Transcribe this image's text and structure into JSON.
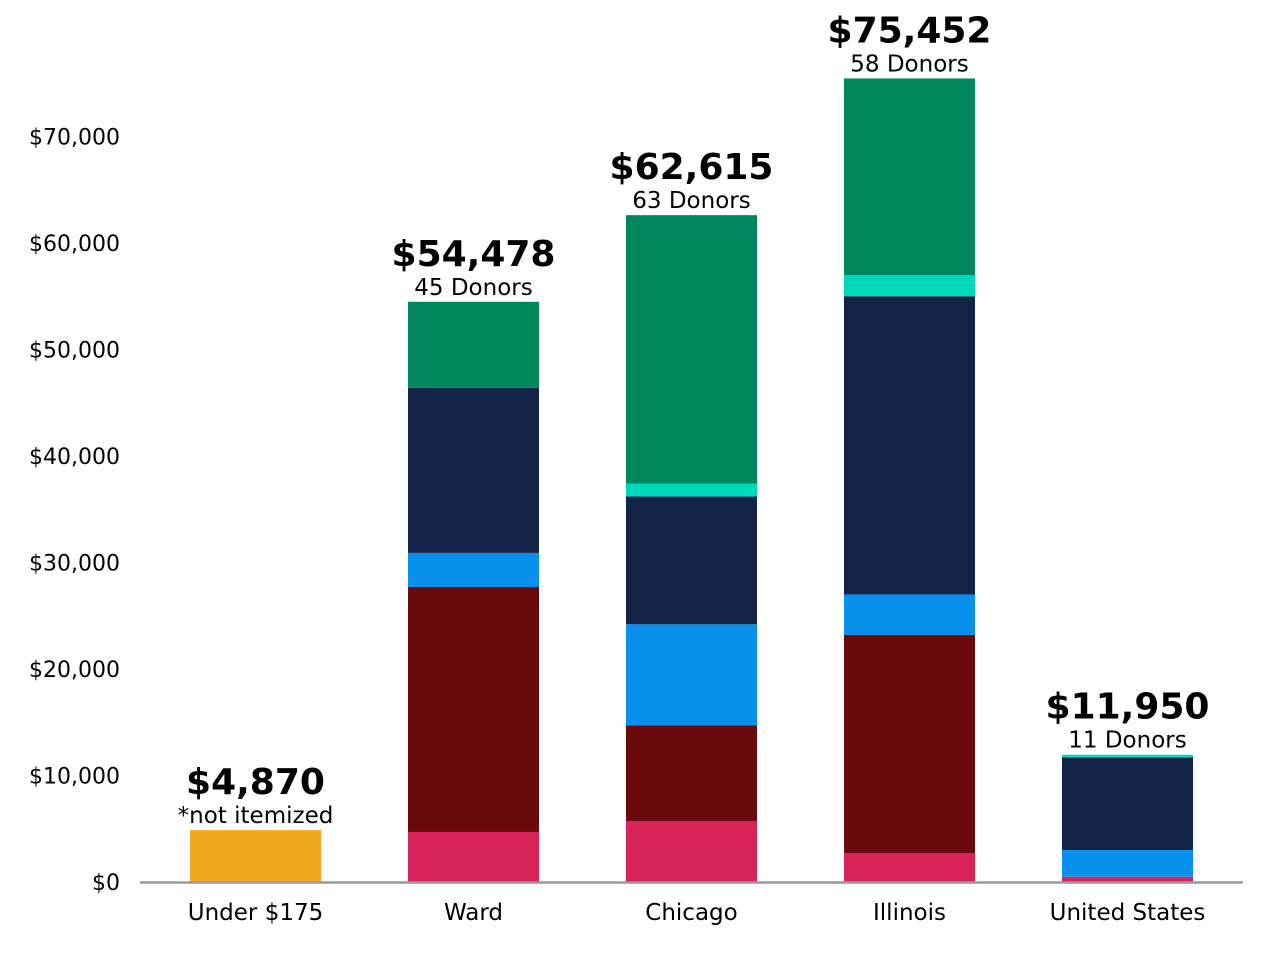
{
  "chart_data": {
    "type": "bar",
    "stacked": true,
    "categories": [
      "Under $175",
      "Ward",
      "Chicago",
      "Illinois",
      "United States"
    ],
    "ylim": [
      0,
      76000
    ],
    "yticks": [
      0,
      10000,
      20000,
      30000,
      40000,
      50000,
      60000,
      70000
    ],
    "ytick_labels": [
      "$0",
      "$10,000",
      "$20,000",
      "$30,000",
      "$40,000",
      "$50,000",
      "$60,000",
      "$70,000"
    ],
    "grid": false,
    "legend": "none",
    "series": [
      {
        "color": "#f2a81d",
        "values": [
          4870,
          0,
          0,
          0,
          0
        ]
      },
      {
        "color": "#d7225a",
        "values": [
          0,
          4700,
          5700,
          2700,
          500
        ]
      },
      {
        "color": "#6b0a0c",
        "values": [
          0,
          23000,
          9000,
          20500,
          0
        ]
      },
      {
        "color": "#0791ec",
        "values": [
          0,
          3200,
          9500,
          3800,
          2500
        ]
      },
      {
        "color": "#142448",
        "values": [
          0,
          15500,
          12000,
          28000,
          8700
        ]
      },
      {
        "color": "#00d8bd",
        "values": [
          0,
          0,
          1200,
          2000,
          250
        ]
      },
      {
        "color": "#00875d",
        "values": [
          0,
          8078,
          25215,
          18452,
          0
        ]
      }
    ],
    "totals": [
      "$4,870",
      "$54,478",
      "$62,615",
      "$75,452",
      "$11,950"
    ],
    "subtitles": [
      "*not itemized",
      "45 Donors",
      "63 Donors",
      "58 Donors",
      "11 Donors"
    ],
    "total_values": [
      4870,
      54478,
      62615,
      75452,
      11950
    ]
  },
  "colors": {
    "axis": "#999999",
    "text": "#000000",
    "background": "#ffffff"
  }
}
